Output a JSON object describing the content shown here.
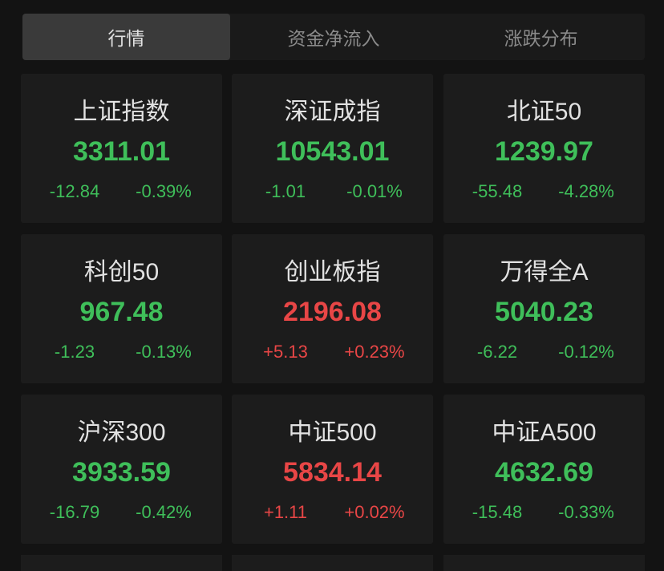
{
  "tabs": [
    {
      "label": "行情",
      "active": true
    },
    {
      "label": "资金净流入",
      "active": false
    },
    {
      "label": "涨跌分布",
      "active": false
    }
  ],
  "colors": {
    "up": "#e84646",
    "down": "#3fbf5a"
  },
  "indices": [
    {
      "name": "上证指数",
      "value": "3311.01",
      "change": "-12.84",
      "pct": "-0.39%",
      "dir": "down"
    },
    {
      "name": "深证成指",
      "value": "10543.01",
      "change": "-1.01",
      "pct": "-0.01%",
      "dir": "down"
    },
    {
      "name": "北证50",
      "value": "1239.97",
      "change": "-55.48",
      "pct": "-4.28%",
      "dir": "down"
    },
    {
      "name": "科创50",
      "value": "967.48",
      "change": "-1.23",
      "pct": "-0.13%",
      "dir": "down"
    },
    {
      "name": "创业板指",
      "value": "2196.08",
      "change": "+5.13",
      "pct": "+0.23%",
      "dir": "up"
    },
    {
      "name": "万得全A",
      "value": "5040.23",
      "change": "-6.22",
      "pct": "-0.12%",
      "dir": "down"
    },
    {
      "name": "沪深300",
      "value": "3933.59",
      "change": "-16.79",
      "pct": "-0.42%",
      "dir": "down"
    },
    {
      "name": "中证500",
      "value": "5834.14",
      "change": "+1.11",
      "pct": "+0.02%",
      "dir": "up"
    },
    {
      "name": "中证A500",
      "value": "4632.69",
      "change": "-15.48",
      "pct": "-0.33%",
      "dir": "down"
    }
  ]
}
